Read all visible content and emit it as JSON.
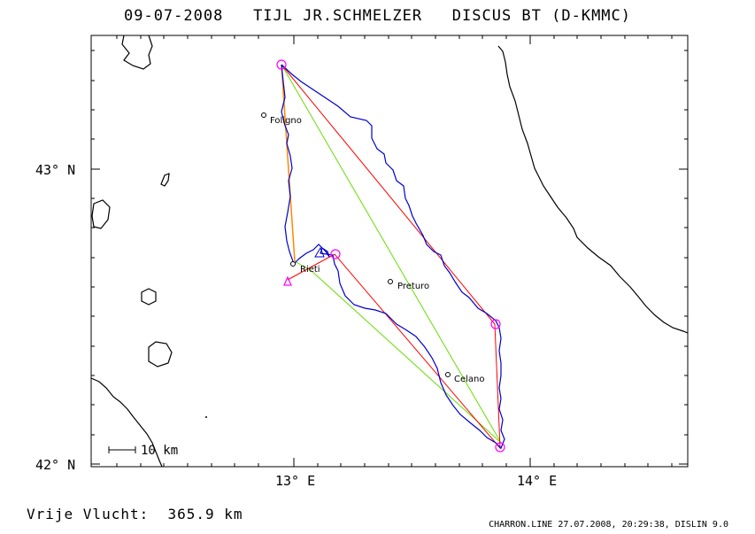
{
  "title": {
    "date": "09-07-2008",
    "pilot": "TIJL JR.SCHMELZER",
    "glider": "DISCUS BT (D-KMMC)"
  },
  "axes": {
    "lat_labels": [
      "43° N",
      "42° N"
    ],
    "lon_labels": [
      "13° E",
      "14° E"
    ]
  },
  "towns": [
    {
      "name": "Foligno"
    },
    {
      "name": "Rieti"
    },
    {
      "name": "Preturo"
    },
    {
      "name": "Celano"
    }
  ],
  "scale_bar": {
    "label": "10 km"
  },
  "footer": {
    "distance": "Vrije Vlucht:  365.9 km",
    "credit": "CHARRON.LINE 27.07.2008, 20:29:38, DISLIN 9.0"
  },
  "colors": {
    "track": "#0000cc",
    "red_route": "#ff0000",
    "green_route": "#66dd00",
    "orange_leg": "#ff8800",
    "turnpoint": "#ff00ff"
  }
}
